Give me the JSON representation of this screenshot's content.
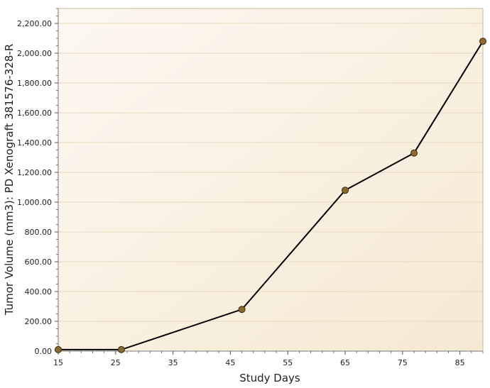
{
  "chart_data": {
    "type": "line",
    "xlabel": "Study Days",
    "ylabel": "Tumor Volume (mm3): PD Xenograft 381576-328-R",
    "xlim": [
      15,
      89
    ],
    "ylim": [
      0,
      2300
    ],
    "x_ticks": [
      "15",
      "25",
      "35",
      "45",
      "55",
      "65",
      "75",
      "85"
    ],
    "x_tick_values": [
      15,
      25,
      35,
      45,
      55,
      65,
      75,
      85
    ],
    "y_ticks": [
      "0.00",
      "200.00",
      "400.00",
      "600.00",
      "800.00",
      "1,000.00",
      "1,200.00",
      "1,400.00",
      "1,600.00",
      "1,800.00",
      "2,000.00",
      "2,200.00"
    ],
    "y_tick_values": [
      0,
      200,
      400,
      600,
      800,
      1000,
      1200,
      1400,
      1600,
      1800,
      2000,
      2200
    ],
    "series": [
      {
        "x": [
          15,
          26,
          47,
          65,
          77,
          89
        ],
        "y": [
          10,
          10,
          280,
          1080,
          1330,
          2080
        ]
      }
    ],
    "grid": true,
    "legend": "none",
    "colors": {
      "line": "#000000",
      "marker_fill": "#8a6a2e",
      "marker_stroke": "#3a2a10",
      "plot_bg_light": "#fdf8f1",
      "plot_bg_dark": "#f5e9d2",
      "grid": "#e6d9c0",
      "frame": "#c8b898"
    }
  }
}
